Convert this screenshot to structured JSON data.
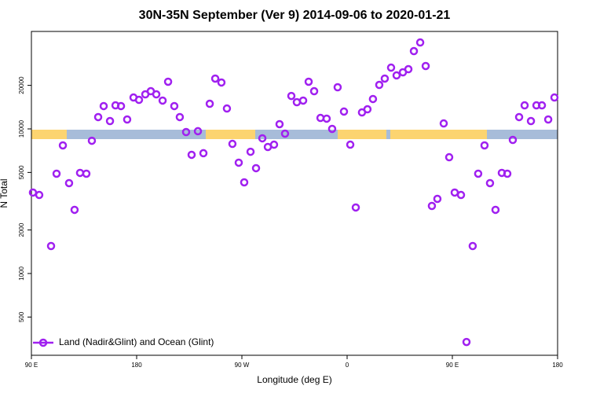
{
  "chart_data": {
    "type": "scatter",
    "title": "30N-35N September (Ver 9)   2014-09-06 to 2020-01-21",
    "x_label": "Longitude (deg E)",
    "y_label": "N Total",
    "log_y": true,
    "legend": "bottom-left",
    "xlim": [
      90,
      540
    ],
    "xticks": [
      {
        "value": 90,
        "label": "90 E"
      },
      {
        "value": 180,
        "label": "180"
      },
      {
        "value": 270,
        "label": "90 W"
      },
      {
        "value": 360,
        "label": "0"
      },
      {
        "value": 450,
        "label": "90 E"
      },
      {
        "value": 540,
        "label": "180"
      }
    ],
    "ylim": [
      272,
      47200
    ],
    "yticks": [
      500,
      1000,
      2000,
      5000,
      10000,
      20000
    ],
    "series": [
      {
        "name": "Land (Nadir&Glint) and Ocean (Glint)",
        "color": "#a020f0",
        "x": [
          91.3,
          96.7,
          106.8,
          111.5,
          116.9,
          122.2,
          126.9,
          131.6,
          137.0,
          141.7,
          147.1,
          151.8,
          157.2,
          161.9,
          166.6,
          171.9,
          177.3,
          182.0,
          187.4,
          192.1,
          196.8,
          202.2,
          206.9,
          212.2,
          216.9,
          222.3,
          227.0,
          232.4,
          237.1,
          242.5,
          247.2,
          252.5,
          257.2,
          261.9,
          267.3,
          272.0,
          277.4,
          282.1,
          287.5,
          292.2,
          297.5,
          302.2,
          306.9,
          312.3,
          317.0,
          322.4,
          327.1,
          331.8,
          337.2,
          342.5,
          347.2,
          351.9,
          357.3,
          362.7,
          367.4,
          372.7,
          377.4,
          382.1,
          387.5,
          392.2,
          397.6,
          402.3,
          407.7,
          412.4,
          417.1,
          422.5,
          427.2,
          432.5,
          437.2,
          442.6,
          447.3,
          452.0,
          457.4,
          462.1,
          467.4,
          472.1,
          477.5,
          482.2,
          486.9,
          492.3,
          497.0,
          501.7,
          507.1,
          511.8,
          517.2,
          521.9,
          526.6,
          532.0,
          537.3
        ],
        "values": [
          3630,
          3493,
          1549,
          4900,
          7690,
          4217,
          2756,
          4963,
          4900,
          8280,
          12070,
          14380,
          11330,
          14550,
          14380,
          11620,
          16490,
          15880,
          17340,
          18230,
          17340,
          15700,
          21190,
          14380,
          12070,
          9510,
          6620,
          9640,
          6790,
          14920,
          22280,
          20940,
          13840,
          7880,
          5840,
          4270,
          6950,
          5350,
          8610,
          7500,
          7780,
          10780,
          9270,
          16900,
          15300,
          15700,
          21190,
          18230,
          11910,
          11770,
          10000,
          19410,
          13180,
          7780,
          2862,
          13000,
          13670,
          16100,
          20150,
          22280,
          26530,
          23440,
          24620,
          25880,
          34510,
          39600,
          27220,
          2933,
          3283,
          10910,
          6370,
          3630,
          3493,
          336,
          1549,
          4900,
          7690,
          4217,
          2756,
          4963,
          4900,
          8390,
          12070,
          14550,
          11330,
          14550,
          14550,
          11620,
          16490
        ]
      }
    ]
  }
}
